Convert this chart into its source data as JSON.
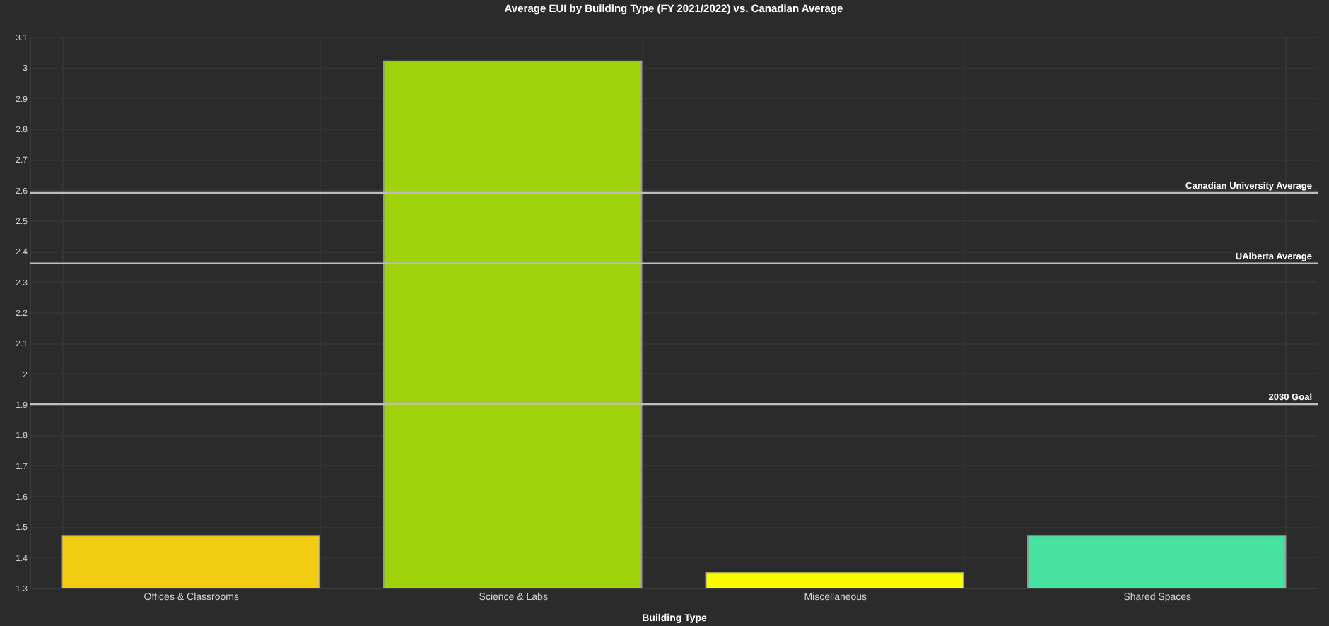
{
  "chart_data": {
    "type": "bar",
    "title": "Average EUI by Building Type (FY 2021/2022) vs. Canadian Average",
    "xlabel": "Building Type",
    "categories": [
      "Offices & Classrooms",
      "Science & Labs",
      "Miscellaneous",
      "Shared Spaces"
    ],
    "values": [
      1.47,
      3.02,
      1.35,
      1.47
    ],
    "colors": [
      "#f2cb13",
      "#a1d30c",
      "#fcfc00",
      "#47e29f"
    ],
    "ylim": [
      1.3,
      3.1
    ],
    "yticks": [
      1.3,
      1.4,
      1.5,
      1.6,
      1.7,
      1.8,
      1.9,
      2,
      2.1,
      2.2,
      2.3,
      2.4,
      2.5,
      2.6,
      2.7,
      2.8,
      2.9,
      3,
      3.1
    ],
    "grid": true,
    "ref_lines": [
      {
        "axis": "y",
        "value": 2.59,
        "label": "Canadian University Average",
        "color": "#bdbdbd"
      },
      {
        "axis": "y",
        "value": 2.36,
        "label": "UAlberta Average",
        "color": "#bdbdbd"
      },
      {
        "axis": "y",
        "value": 1.9,
        "label": "2030 Goal",
        "color": "#bdbdbd"
      }
    ]
  }
}
